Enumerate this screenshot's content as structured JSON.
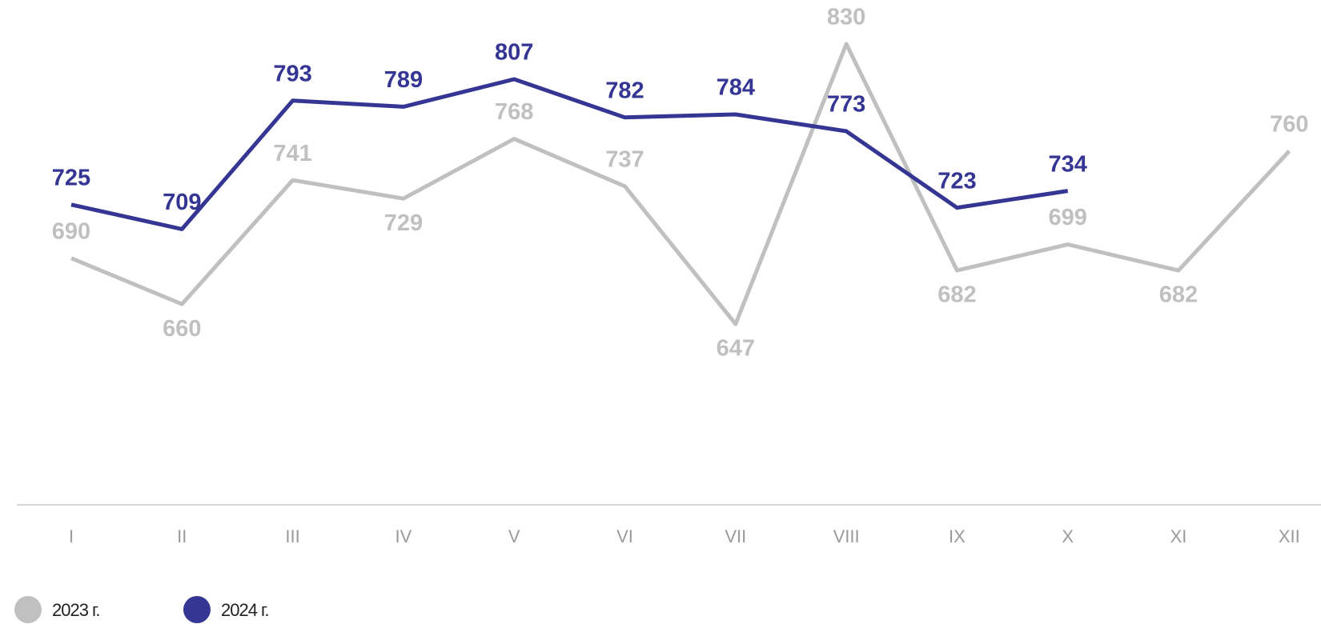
{
  "chart_data": {
    "type": "line",
    "categories": [
      "I",
      "II",
      "III",
      "IV",
      "V",
      "VI",
      "VII",
      "VIII",
      "IX",
      "X",
      "XI",
      "XII"
    ],
    "series": [
      {
        "name": "2023 г.",
        "color": "#c0c0c0",
        "values": [
          690,
          660,
          741,
          729,
          768,
          737,
          647,
          830,
          682,
          699,
          682,
          760
        ]
      },
      {
        "name": "2024 г.",
        "color": "#353594",
        "values": [
          725,
          709,
          793,
          789,
          807,
          782,
          784,
          773,
          723,
          734,
          null,
          null
        ]
      }
    ],
    "legend": "bottom-left"
  }
}
